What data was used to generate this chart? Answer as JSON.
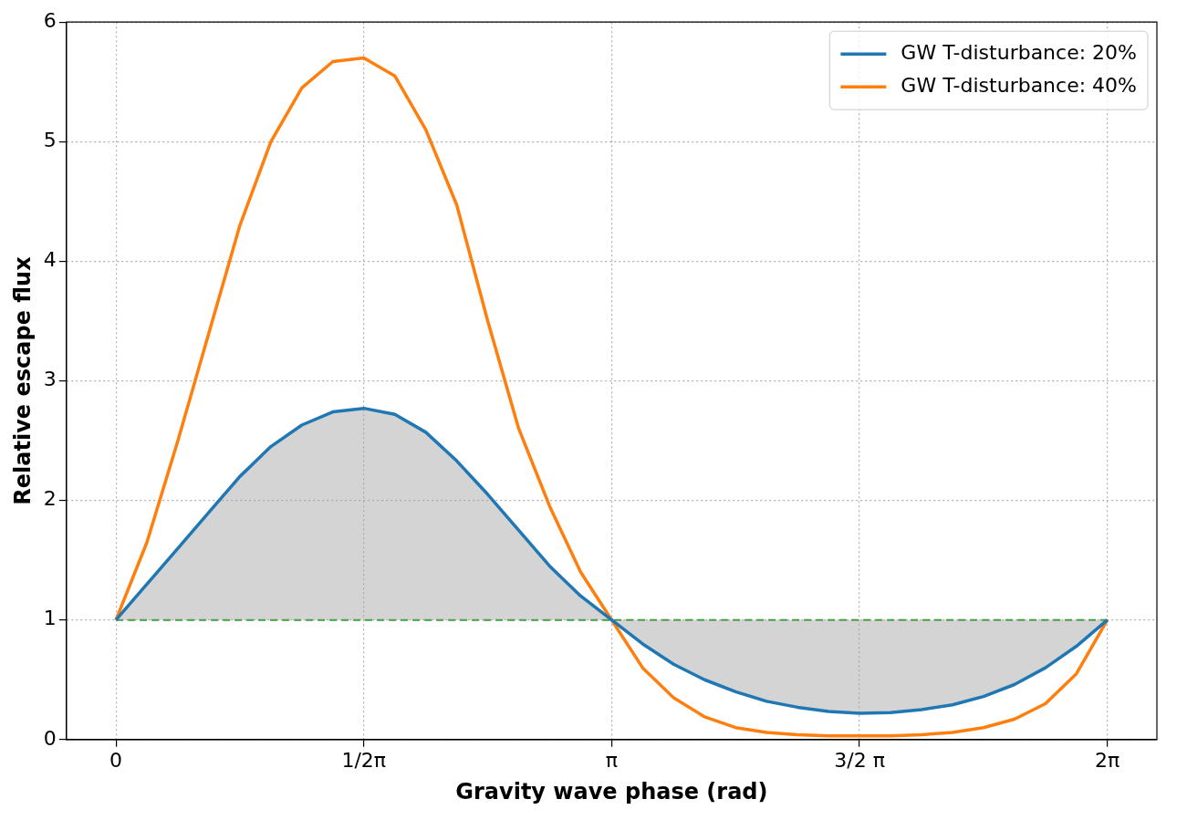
{
  "chart_data": {
    "type": "line",
    "xlabel": "Gravity wave phase (rad)",
    "ylabel": "Relative escape flux",
    "x": [
      0,
      0.1963,
      0.3927,
      0.589,
      0.7854,
      0.9817,
      1.1781,
      1.3744,
      1.5708,
      1.7671,
      1.9635,
      2.1598,
      2.3562,
      2.5525,
      2.7489,
      2.9452,
      3.1416,
      3.3379,
      3.5343,
      3.7306,
      3.927,
      4.1233,
      4.3197,
      4.516,
      4.7124,
      4.9087,
      5.1051,
      5.3014,
      5.4978,
      5.6941,
      5.8905,
      6.0868,
      6.2832
    ],
    "series": [
      {
        "name": "GW T-disturbance: 20%",
        "color": "#1f77b4",
        "values": [
          1,
          1.3,
          1.6,
          1.9,
          2.2,
          2.45,
          2.63,
          2.74,
          2.77,
          2.72,
          2.57,
          2.33,
          2.05,
          1.75,
          1.45,
          1.2,
          1,
          0.8,
          0.63,
          0.5,
          0.4,
          0.32,
          0.27,
          0.235,
          0.22,
          0.225,
          0.25,
          0.29,
          0.36,
          0.46,
          0.6,
          0.78,
          1
        ],
        "lower": [
          1,
          1,
          1,
          1,
          1,
          1,
          1,
          1,
          1,
          1,
          1,
          1,
          1,
          1,
          1,
          1,
          1,
          0.8,
          0.63,
          0.5,
          0.4,
          0.32,
          0.27,
          0.235,
          0.22,
          0.225,
          0.25,
          0.29,
          0.36,
          0.46,
          0.6,
          0.78,
          1
        ],
        "upper": [
          1,
          1.3,
          1.6,
          1.9,
          2.2,
          2.45,
          2.63,
          2.74,
          2.77,
          2.72,
          2.57,
          2.33,
          2.05,
          1.75,
          1.45,
          1.2,
          1,
          1,
          1,
          1,
          1,
          1,
          1,
          1,
          1,
          1,
          1,
          1,
          1,
          1,
          1,
          1,
          1
        ]
      },
      {
        "name": "GW T-disturbance: 40%",
        "color": "#ff7f0e",
        "values": [
          1,
          1.65,
          2.5,
          3.4,
          4.3,
          5.0,
          5.45,
          5.67,
          5.7,
          5.55,
          5.1,
          4.47,
          3.5,
          2.6,
          1.95,
          1.4,
          1,
          0.6,
          0.35,
          0.19,
          0.1,
          0.06,
          0.04,
          0.03,
          0.03,
          0.03,
          0.04,
          0.06,
          0.1,
          0.17,
          0.3,
          0.55,
          1
        ]
      }
    ],
    "ref_lines": [
      {
        "axis": "y",
        "value": 1,
        "color": "#2ca02c",
        "line_style": "dashed"
      }
    ],
    "xlim": [
      -0.314,
      6.597
    ],
    "ylim": [
      0,
      6
    ],
    "xticks": [
      0,
      {
        "value": 1.5708,
        "label": "1/2π"
      },
      {
        "value": 3.1416,
        "label": "π"
      },
      {
        "value": 4.7124,
        "label": "3/2 π"
      },
      {
        "value": 6.2832,
        "label": "2π"
      }
    ],
    "yticks": [
      0,
      1,
      2,
      3,
      4,
      5,
      6
    ],
    "grid": true,
    "legend": "top right",
    "line_style": "solid",
    "marker": "none"
  }
}
